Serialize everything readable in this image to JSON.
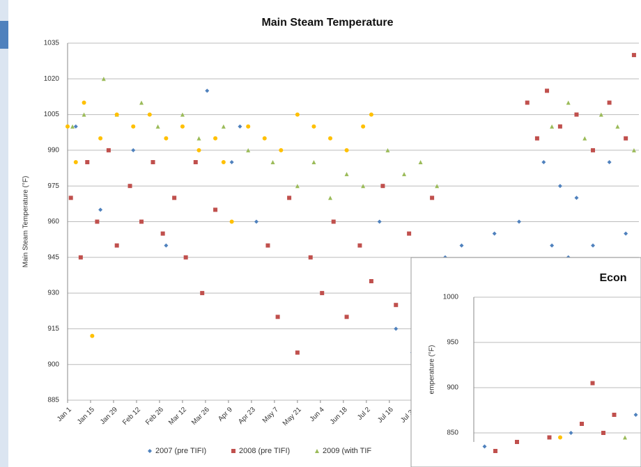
{
  "chart_data": [
    {
      "type": "scatter",
      "title": "Main Steam Temperature",
      "y_label": "Main Steam Temperature (°F)",
      "xlim": [
        0,
        348
      ],
      "ylim": [
        885,
        1035
      ],
      "yticks": [
        885,
        900,
        915,
        930,
        945,
        960,
        975,
        990,
        1005,
        1020,
        1035
      ],
      "xticks": [
        {
          "value": 0,
          "label": "Jan 1"
        },
        {
          "value": 14,
          "label": "Jan 15"
        },
        {
          "value": 28,
          "label": "Jan 29"
        },
        {
          "value": 42,
          "label": "Feb 12"
        },
        {
          "value": 56,
          "label": "Feb 26"
        },
        {
          "value": 70,
          "label": "Mar 12"
        },
        {
          "value": 84,
          "label": "Mar 26"
        },
        {
          "value": 98,
          "label": "Apr 9"
        },
        {
          "value": 112,
          "label": "Apr 23"
        },
        {
          "value": 126,
          "label": "May 7"
        },
        {
          "value": 140,
          "label": "May 21"
        },
        {
          "value": 154,
          "label": "Jun 4"
        },
        {
          "value": 168,
          "label": "Jun 18"
        },
        {
          "value": 182,
          "label": "Jul 2"
        },
        {
          "value": 196,
          "label": "Jul 16"
        },
        {
          "value": 210,
          "label": "Jul 30"
        }
      ],
      "grid": true,
      "series": [
        {
          "name": "2007 (pre TIFI)",
          "color": "#4f81bd",
          "marker": "diamond",
          "x": [
            5,
            20,
            40,
            60,
            85,
            100,
            105,
            115,
            190,
            200,
            210,
            220,
            230,
            240,
            250,
            260,
            275,
            290,
            295,
            300,
            305,
            310,
            320,
            330,
            340
          ],
          "values": [
            1000,
            965,
            990,
            950,
            1015,
            985,
            1000,
            960,
            960,
            915,
            905,
            930,
            945,
            950,
            940,
            955,
            960,
            985,
            950,
            975,
            945,
            970,
            950,
            985,
            955
          ]
        },
        {
          "name": "2008 (pre TIFI)",
          "color": "#c0504d",
          "marker": "square",
          "x": [
            2,
            8,
            12,
            18,
            25,
            30,
            38,
            45,
            52,
            58,
            65,
            72,
            78,
            82,
            90,
            122,
            128,
            135,
            140,
            148,
            155,
            162,
            170,
            178,
            185,
            192,
            200,
            208,
            215,
            222,
            280,
            286,
            292,
            300,
            310,
            320,
            330,
            340,
            345
          ],
          "values": [
            970,
            945,
            985,
            960,
            990,
            950,
            975,
            960,
            985,
            955,
            970,
            945,
            985,
            930,
            965,
            950,
            920,
            970,
            905,
            945,
            930,
            960,
            920,
            950,
            935,
            975,
            925,
            955,
            940,
            970,
            1010,
            995,
            1015,
            1000,
            1005,
            990,
            1010,
            995,
            1030
          ]
        },
        {
          "name": "2009 (with TIF",
          "color": "#9bbb59",
          "marker": "triangle",
          "x": [
            3,
            10,
            22,
            30,
            45,
            55,
            70,
            80,
            95,
            110,
            125,
            140,
            150,
            160,
            170,
            180,
            195,
            205,
            215,
            225,
            295,
            305,
            315,
            325,
            335,
            345
          ],
          "values": [
            1000,
            1005,
            1020,
            1005,
            1010,
            1000,
            1005,
            995,
            1000,
            990,
            985,
            975,
            985,
            970,
            980,
            975,
            990,
            980,
            985,
            975,
            1000,
            1010,
            995,
            1005,
            1000,
            990
          ]
        },
        {
          "color": "#ffc000",
          "marker": "circle",
          "x": [
            0,
            5,
            10,
            15,
            20,
            30,
            40,
            50,
            60,
            70,
            80,
            90,
            95,
            100,
            110,
            120,
            130,
            140,
            150,
            160,
            170,
            180,
            185
          ],
          "values": [
            1000,
            985,
            1010,
            912,
            995,
            1005,
            1000,
            1005,
            995,
            1000,
            990,
            995,
            985,
            960,
            1000,
            995,
            990,
            1005,
            1000,
            995,
            990,
            1000,
            1005
          ]
        }
      ]
    },
    {
      "type": "scatter",
      "title": "Econ",
      "y_label": "emperature (°F)",
      "xlim": [
        0,
        100
      ],
      "ylim": [
        840,
        1000
      ],
      "yticks": [
        850,
        900,
        950,
        1000
      ],
      "grid": true,
      "series": [
        {
          "color": "#4f81bd",
          "marker": "diamond",
          "x": [
            5,
            45,
            75,
            90
          ],
          "values": [
            835,
            850,
            870,
            860
          ]
        },
        {
          "color": "#c0504d",
          "marker": "square",
          "x": [
            10,
            20,
            35,
            50,
            55,
            60,
            65
          ],
          "values": [
            830,
            840,
            845,
            860,
            905,
            850,
            870
          ]
        },
        {
          "color": "#9bbb59",
          "marker": "triangle",
          "x": [
            70,
            85,
            95
          ],
          "values": [
            845,
            840,
            850
          ]
        },
        {
          "color": "#ffc000",
          "marker": "circle",
          "x": [
            40
          ],
          "values": [
            845
          ]
        }
      ]
    }
  ]
}
